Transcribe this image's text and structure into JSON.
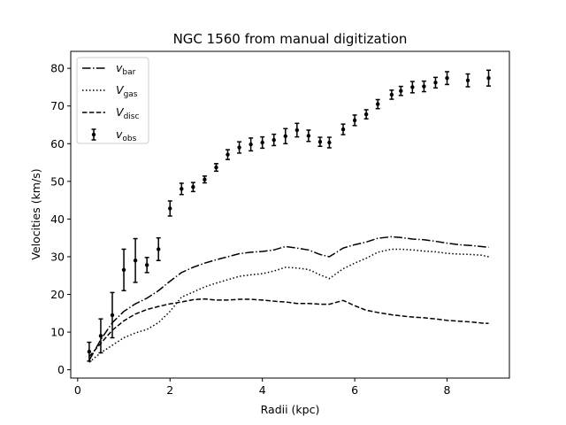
{
  "chart_data": {
    "type": "line",
    "title": "NGC 1560 from manual digitization",
    "xlabel": "Radii (kpc)",
    "ylabel": "Velocities (km/s)",
    "xlim": [
      -0.15,
      9.35
    ],
    "ylim": [
      -2.2,
      84.5
    ],
    "xticks": [
      0,
      2,
      4,
      6,
      8
    ],
    "yticks": [
      0,
      10,
      20,
      30,
      40,
      50,
      60,
      70,
      80
    ],
    "grid": false,
    "legend_position": "top-left",
    "legend": [
      {
        "key": "vbar",
        "base": "v",
        "sub": "bar",
        "style": "dashdot"
      },
      {
        "key": "vgas",
        "base": "V",
        "sub": "gas",
        "style": "dotted"
      },
      {
        "key": "vdisc",
        "base": "V",
        "sub": "disc",
        "style": "dashed"
      },
      {
        "key": "vobs",
        "base": "v",
        "sub": "obs",
        "style": "errorbar"
      }
    ],
    "series": [
      {
        "key": "vbar",
        "style": "dashdot",
        "x": [
          0.25,
          0.5,
          0.75,
          1.0,
          1.25,
          1.5,
          1.75,
          2.0,
          2.25,
          2.5,
          2.75,
          3.0,
          3.25,
          3.5,
          3.75,
          4.0,
          4.25,
          4.5,
          4.75,
          5.0,
          5.25,
          5.45,
          5.75,
          6.0,
          6.25,
          6.5,
          6.8,
          7.0,
          7.25,
          7.5,
          7.75,
          8.0,
          8.25,
          8.5,
          8.75,
          8.9
        ],
        "y": [
          2.5,
          8.0,
          12.5,
          15.5,
          17.5,
          19.0,
          21.0,
          23.5,
          25.8,
          27.2,
          28.3,
          29.2,
          30.0,
          30.8,
          31.2,
          31.4,
          31.8,
          32.7,
          32.3,
          31.8,
          30.6,
          30.0,
          32.3,
          33.2,
          33.9,
          34.9,
          35.3,
          35.1,
          34.7,
          34.5,
          34.1,
          33.6,
          33.2,
          33.0,
          32.7,
          32.5
        ]
      },
      {
        "key": "vgas",
        "style": "dotted",
        "x": [
          0.25,
          0.5,
          0.75,
          1.0,
          1.25,
          1.5,
          1.75,
          2.0,
          2.25,
          2.5,
          2.75,
          3.0,
          3.25,
          3.5,
          3.75,
          4.0,
          4.25,
          4.5,
          4.75,
          5.0,
          5.25,
          5.45,
          5.75,
          6.0,
          6.25,
          6.5,
          6.8,
          7.0,
          7.25,
          7.5,
          7.75,
          8.0,
          8.25,
          8.5,
          8.75,
          8.9
        ],
        "y": [
          2.0,
          4.5,
          6.5,
          8.5,
          9.8,
          10.7,
          12.5,
          15.5,
          19.3,
          20.6,
          22.0,
          23.0,
          23.9,
          24.8,
          25.2,
          25.5,
          26.2,
          27.2,
          27.0,
          26.6,
          25.2,
          24.2,
          26.8,
          28.3,
          29.6,
          31.2,
          32.0,
          32.0,
          31.8,
          31.5,
          31.3,
          30.9,
          30.7,
          30.6,
          30.4,
          30.0
        ]
      },
      {
        "key": "vdisc",
        "style": "dashed",
        "x": [
          0.25,
          0.5,
          0.75,
          1.0,
          1.25,
          1.5,
          1.75,
          2.0,
          2.25,
          2.5,
          2.75,
          3.0,
          3.25,
          3.5,
          3.75,
          4.0,
          4.25,
          4.5,
          4.75,
          5.0,
          5.25,
          5.45,
          5.75,
          6.0,
          6.25,
          6.5,
          6.8,
          7.0,
          7.25,
          7.5,
          7.75,
          8.0,
          8.25,
          8.5,
          8.75,
          8.9
        ],
        "y": [
          3.5,
          7.0,
          10.5,
          13.0,
          14.8,
          16.0,
          16.8,
          17.5,
          18.0,
          18.6,
          18.8,
          18.5,
          18.5,
          18.7,
          18.7,
          18.5,
          18.2,
          18.0,
          17.6,
          17.6,
          17.4,
          17.4,
          18.4,
          17.0,
          15.8,
          15.2,
          14.6,
          14.3,
          14.0,
          13.8,
          13.5,
          13.1,
          12.9,
          12.7,
          12.4,
          12.3
        ]
      },
      {
        "key": "vobs",
        "style": "errorbar",
        "x": [
          0.25,
          0.5,
          0.75,
          1.0,
          1.25,
          1.5,
          1.75,
          2.0,
          2.25,
          2.5,
          2.75,
          3.0,
          3.25,
          3.5,
          3.75,
          4.0,
          4.25,
          4.5,
          4.75,
          5.0,
          5.25,
          5.45,
          5.75,
          6.0,
          6.25,
          6.5,
          6.8,
          7.0,
          7.25,
          7.5,
          7.75,
          8.0,
          8.45,
          8.9
        ],
        "y": [
          4.8,
          9.0,
          14.5,
          26.5,
          29.0,
          27.8,
          32.0,
          42.8,
          48.0,
          48.5,
          50.5,
          53.7,
          57.1,
          59.0,
          59.8,
          60.3,
          61.0,
          62.0,
          63.6,
          62.1,
          60.5,
          60.3,
          63.8,
          66.2,
          67.8,
          70.5,
          73.0,
          74.0,
          75.0,
          75.2,
          76.2,
          77.4,
          76.8,
          77.4
        ],
        "err": [
          2.5,
          4.5,
          6.0,
          5.5,
          5.8,
          2.0,
          3.0,
          2.0,
          1.5,
          1.2,
          0.9,
          1.0,
          1.3,
          1.5,
          1.7,
          1.5,
          1.5,
          2.0,
          1.8,
          1.5,
          1.2,
          1.4,
          1.4,
          1.4,
          1.2,
          1.2,
          1.2,
          1.2,
          1.5,
          1.4,
          1.4,
          1.7,
          1.7,
          2.1
        ]
      }
    ]
  }
}
